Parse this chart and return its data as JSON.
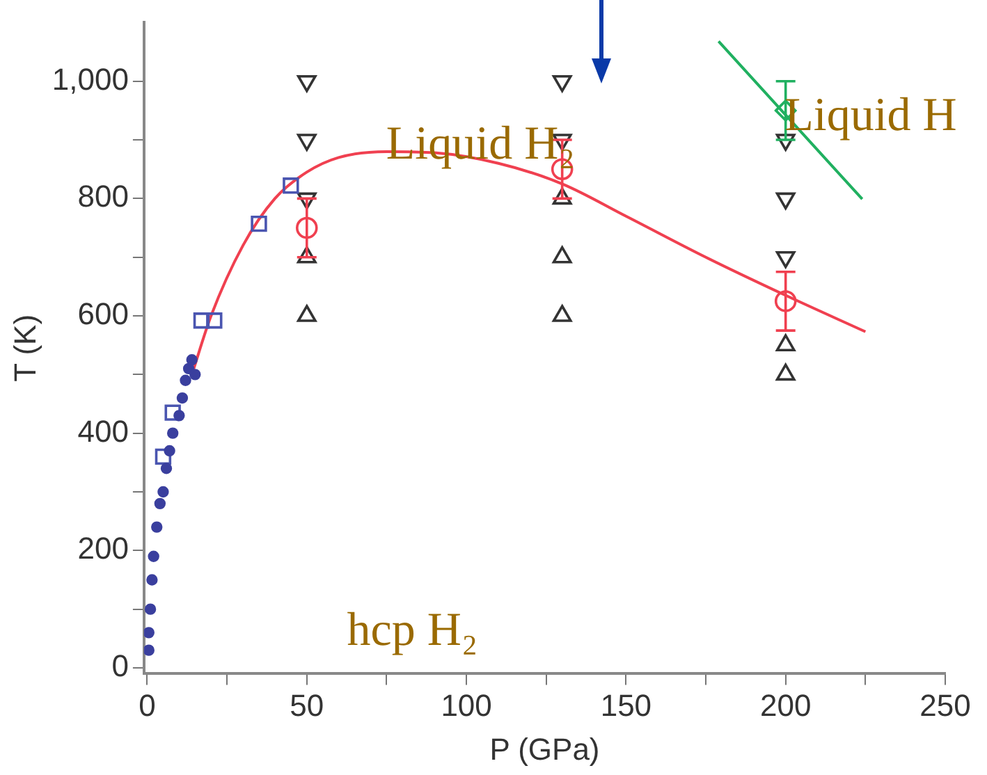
{
  "chart_data": {
    "type": "scatter",
    "xlabel": "P (GPa)",
    "ylabel": "T (K)",
    "xlim": [
      -1,
      250
    ],
    "ylim": [
      -10,
      1100
    ],
    "xticks": [
      0,
      {
        "value": 25,
        "label": null
      },
      50,
      {
        "value": 75,
        "label": null
      },
      100,
      {
        "value": 125,
        "label": null
      },
      150,
      {
        "value": 175,
        "label": null
      },
      200,
      {
        "value": 225,
        "label": null
      },
      250
    ],
    "yticks": [
      0,
      {
        "value": 100,
        "label": null
      },
      200,
      {
        "value": 300,
        "label": null
      },
      400,
      {
        "value": 500,
        "label": null
      },
      600,
      {
        "value": 700,
        "label": null
      },
      800,
      {
        "value": 900,
        "label": null
      },
      {
        "value": 1000,
        "label": "1,000"
      }
    ],
    "grid": false,
    "legend": false,
    "series": [
      {
        "type": "line",
        "color": "#f04050",
        "marker": "none",
        "x": [
          14,
          20,
          30,
          40,
          50,
          60,
          75,
          90,
          110,
          130,
          150,
          175,
          200,
          225
        ],
        "values": [
          500,
          600,
          720,
          800,
          845,
          870,
          880,
          878,
          860,
          825,
          770,
          700,
          635,
          573
        ]
      },
      {
        "type": "line",
        "color": "#20b060",
        "marker": "none",
        "x": [
          179,
          224
        ],
        "values": [
          1068,
          799
        ]
      },
      {
        "color": "#3a3f9e",
        "marker": "circle",
        "x": [
          0.5,
          0.5,
          1,
          1.5,
          2,
          3,
          4,
          5,
          6,
          7,
          8,
          10,
          11,
          12,
          13,
          14,
          15
        ],
        "values": [
          30,
          60,
          100,
          150,
          190,
          240,
          280,
          300,
          340,
          370,
          400,
          430,
          460,
          490,
          510,
          525,
          500
        ]
      },
      {
        "color": "#4a55b0",
        "marker": "square",
        "x": [
          5,
          8,
          17,
          21,
          35,
          45
        ],
        "values": [
          360,
          435,
          592,
          592,
          757,
          822
        ]
      },
      {
        "color": "#333333",
        "marker": "triangle-down",
        "x": [
          50,
          50,
          50,
          130,
          130,
          200,
          200,
          200
        ],
        "values": [
          1000,
          900,
          800,
          1000,
          900,
          900,
          800,
          700
        ]
      },
      {
        "color": "#333333",
        "marker": "triangle",
        "x": [
          50,
          50,
          130,
          130,
          130,
          200,
          200
        ],
        "values": [
          700,
          600,
          800,
          700,
          600,
          550,
          500
        ]
      },
      {
        "color": "#f04050",
        "marker": "circle",
        "x": [
          50,
          130,
          200
        ],
        "values": [
          750,
          850,
          625
        ],
        "errors": [
          50,
          50,
          50
        ]
      },
      {
        "color": "#20b060",
        "marker": "diamond",
        "x": [
          200
        ],
        "values": [
          950
        ],
        "errors": [
          50
        ]
      }
    ],
    "annotations": [
      "Liquid H₂",
      "Liquid H",
      "hcp H₂"
    ]
  }
}
